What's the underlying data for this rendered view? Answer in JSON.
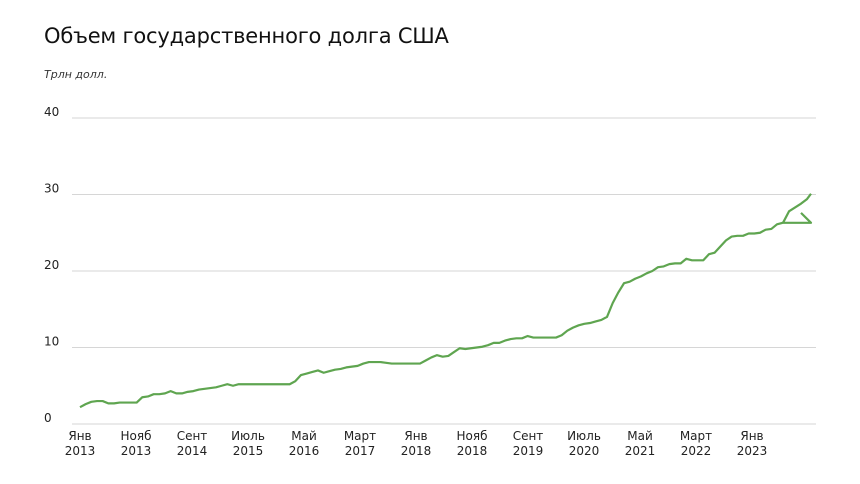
{
  "chart_data": {
    "type": "line",
    "title": "Объем государственного долга США",
    "ylabel": "Трлн долл.",
    "xlabel": "",
    "ylim": [
      0,
      40
    ],
    "yticks": [
      "0",
      "10",
      "20",
      "30",
      "40"
    ],
    "grid": true,
    "xtick_labels": [
      [
        "Янв",
        "2013"
      ],
      [
        "Нояб",
        "2013"
      ],
      [
        "Сент",
        "2014"
      ],
      [
        "Июль",
        "2015"
      ],
      [
        "Май",
        "2016"
      ],
      [
        "Март",
        "2017"
      ],
      [
        "Янв",
        "2018"
      ],
      [
        "Нояб",
        "2018"
      ],
      [
        "Сент",
        "2019"
      ],
      [
        "Июль",
        "2020"
      ],
      [
        "Май",
        "2021"
      ],
      [
        "Март",
        "2022"
      ],
      [
        "Янв",
        "2023"
      ]
    ],
    "color": "#5fa550",
    "series": [
      {
        "x": [
          0,
          1,
          2,
          3,
          4,
          5,
          6,
          7,
          8,
          9,
          10,
          11,
          12,
          13,
          14,
          15,
          16,
          17,
          18,
          19,
          20,
          21,
          22,
          23,
          24,
          25,
          26,
          27,
          28,
          29,
          30,
          31,
          32,
          33,
          34,
          35,
          36,
          37,
          38,
          39,
          40,
          41,
          42,
          43,
          44,
          45,
          46,
          47,
          48,
          49,
          50,
          51,
          52,
          53,
          54,
          55,
          56,
          57,
          58,
          59,
          60,
          61,
          62,
          63,
          64,
          65,
          66,
          67,
          68,
          69,
          70,
          71,
          72,
          73,
          74,
          75,
          76,
          77,
          78,
          79,
          80,
          81,
          82,
          83,
          84,
          85,
          86,
          87,
          88,
          89,
          90,
          91,
          92,
          93,
          94,
          95,
          96,
          97,
          98,
          99,
          100,
          101,
          102,
          103,
          104,
          105,
          106,
          107,
          108,
          109,
          110,
          111,
          112,
          113,
          114,
          115,
          116,
          117,
          118,
          119,
          120,
          121,
          122,
          123,
          124,
          125,
          126,
          127,
          128,
          129
        ],
        "y": [
          2.2,
          2.6,
          2.9,
          3.0,
          3.0,
          2.7,
          2.7,
          2.8,
          2.8,
          2.8,
          2.8,
          3.5,
          3.6,
          3.9,
          3.9,
          4.0,
          4.3,
          4.0,
          4.0,
          4.2,
          4.3,
          4.5,
          4.6,
          4.7,
          4.8,
          5.0,
          5.2,
          5.0,
          5.2,
          5.2,
          5.2,
          5.2,
          5.2,
          5.2,
          5.2,
          5.2,
          5.2,
          5.2,
          5.6,
          6.4,
          6.6,
          6.8,
          7.0,
          6.7,
          6.9,
          7.1,
          7.2,
          7.4,
          7.5,
          7.6,
          7.9,
          8.1,
          8.1,
          8.1,
          8.0,
          7.9,
          7.9,
          7.9,
          7.9,
          7.9,
          7.9,
          8.3,
          8.7,
          9.0,
          8.8,
          8.9,
          9.4,
          9.9,
          9.8,
          9.9,
          10.0,
          10.1,
          10.3,
          10.6,
          10.6,
          10.9,
          11.1,
          11.2,
          11.2,
          11.5,
          11.3,
          11.3,
          11.3,
          11.3,
          11.3,
          11.6,
          12.2,
          12.6,
          12.9,
          13.1,
          13.2,
          13.4,
          13.6,
          14.0,
          15.8,
          17.2,
          18.4,
          18.6,
          19.0,
          19.3,
          19.7,
          20.0,
          20.5,
          20.6,
          20.9,
          21.0,
          21.0,
          21.6,
          21.4,
          21.4,
          21.4,
          22.2,
          22.4,
          23.2,
          24.0,
          24.5,
          24.6,
          24.6,
          24.9,
          24.9,
          25.0,
          25.4,
          25.5,
          26.1,
          26.3,
          26.3,
          26.3,
          26.3,
          26.3,
          26.3
        ]
      }
    ]
  }
}
